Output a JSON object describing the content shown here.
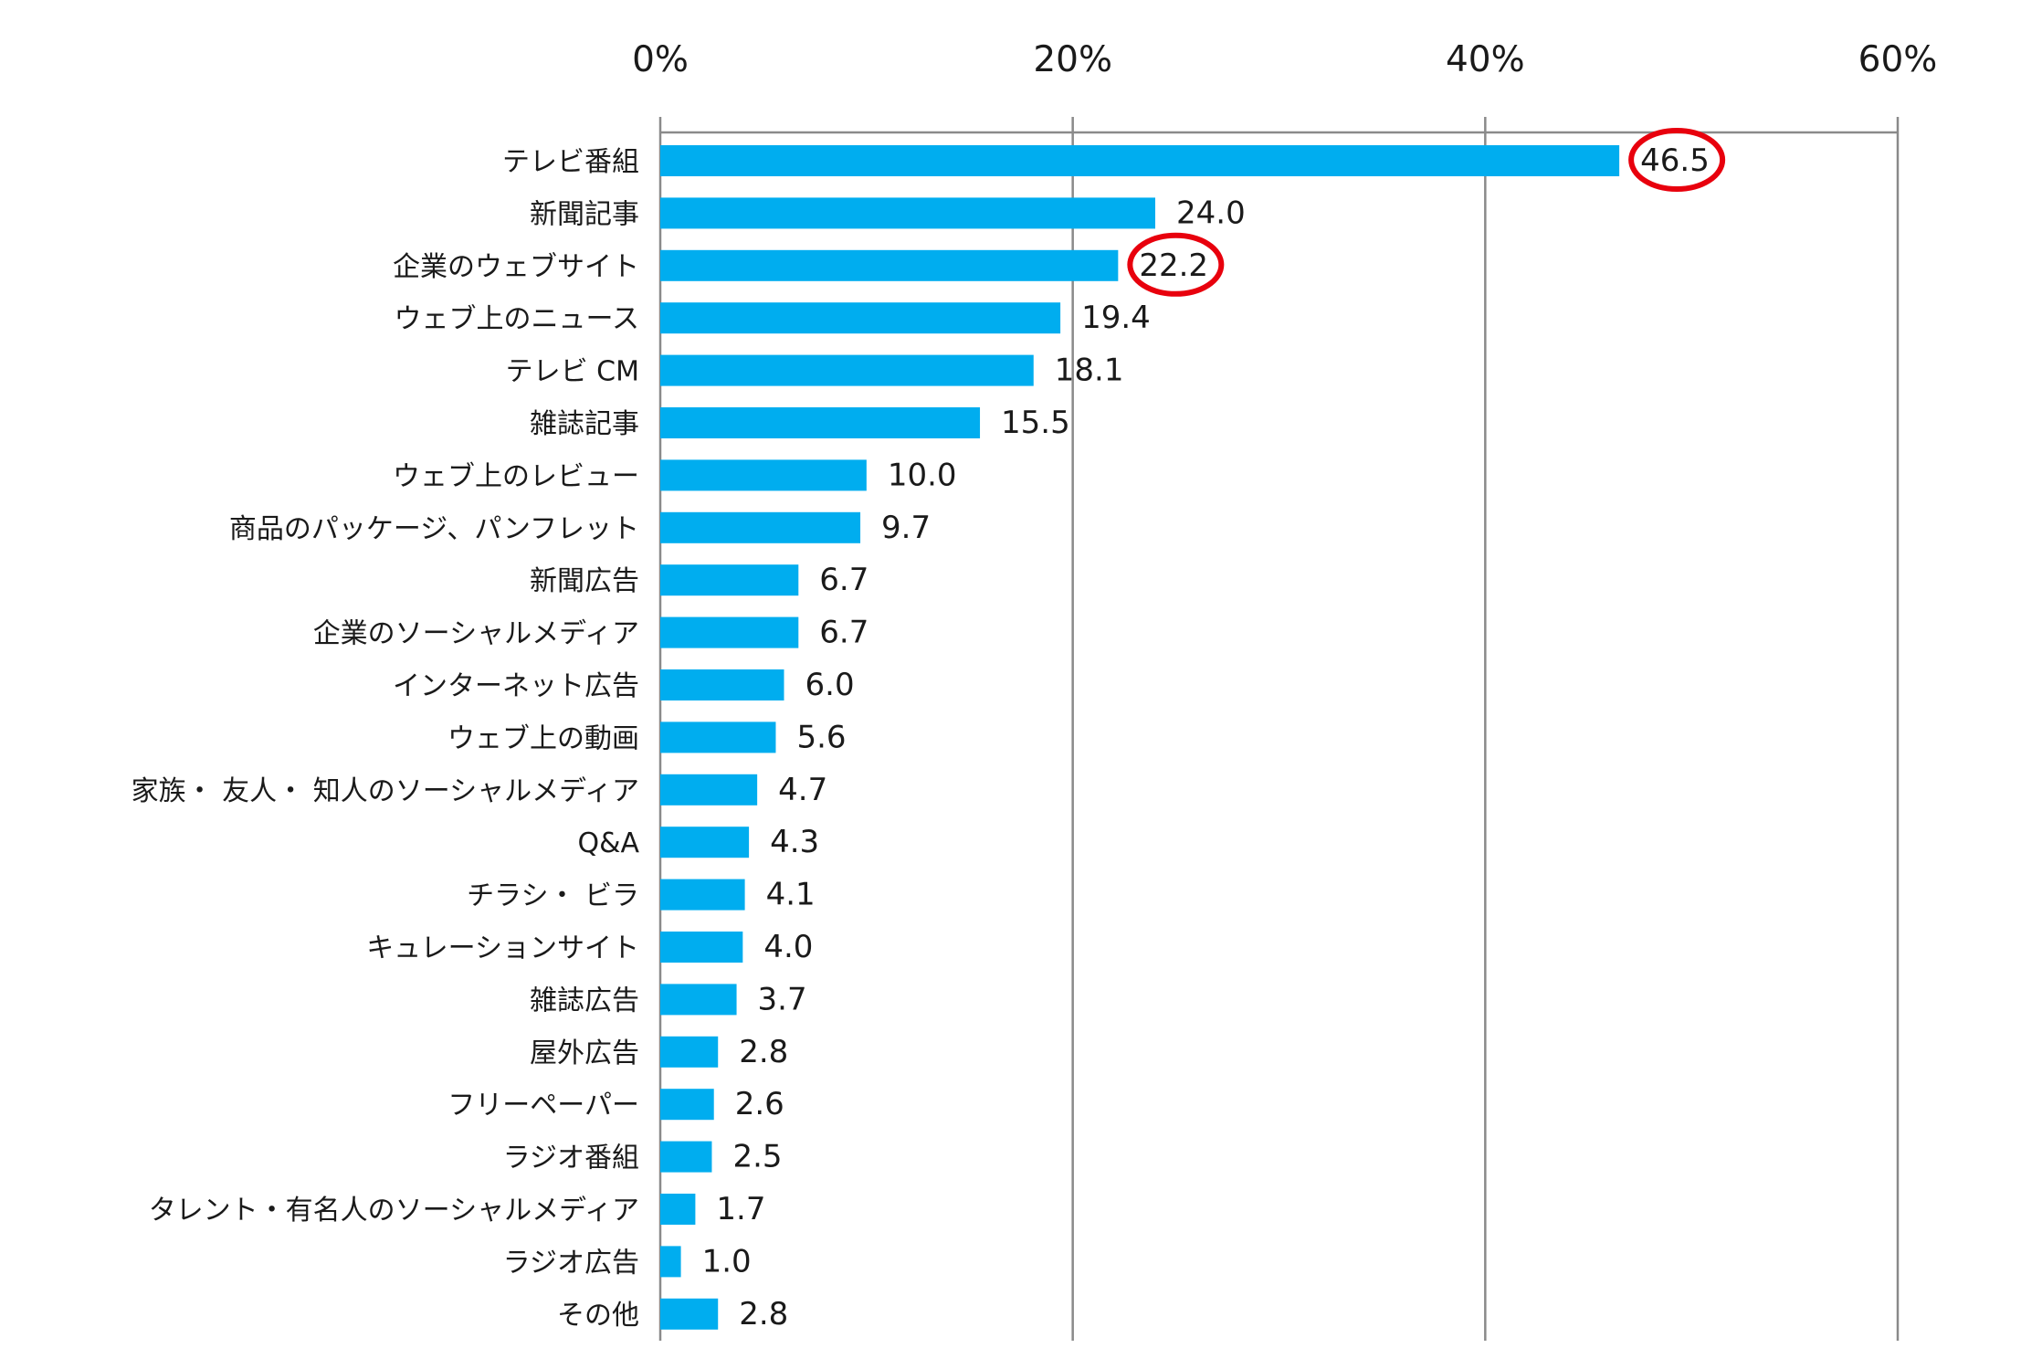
{
  "chart_data": {
    "type": "bar",
    "orientation": "horizontal",
    "title": "",
    "xlabel": "",
    "ylabel": "",
    "xlim": [
      0,
      60
    ],
    "x_ticks": [
      "0%",
      "20%",
      "40%",
      "60%"
    ],
    "x_tick_values": [
      0,
      20,
      40,
      60
    ],
    "grid": true,
    "bar_color": "#00adef",
    "highlight_color": "#e8000d",
    "highlighted_categories": [
      "テレビ番組",
      "企業のウェブサイト"
    ],
    "categories": [
      "テレビ番組",
      "新聞記事",
      "企業のウェブサイト",
      "ウェブ上のニュース",
      "テレビ CM",
      "雑誌記事",
      "ウェブ上のレビュー",
      "商品のパッケージ、パンフレット",
      "新聞広告",
      "企業のソーシャルメディア",
      "インターネット広告",
      "ウェブ上の動画",
      "家族・ 友人・ 知人のソーシャルメディア",
      "Q&A",
      "チラシ・ ビラ",
      "キュレーションサイト",
      "雑誌広告",
      "屋外広告",
      "フリーペーパー",
      "ラジオ番組",
      "タレント・有名人のソーシャルメディア",
      "ラジオ広告",
      "その他"
    ],
    "values": [
      46.5,
      24.0,
      22.2,
      19.4,
      18.1,
      15.5,
      10.0,
      9.7,
      6.7,
      6.7,
      6.0,
      5.6,
      4.7,
      4.3,
      4.1,
      4.0,
      3.7,
      2.8,
      2.6,
      2.5,
      1.7,
      1.0,
      2.8
    ],
    "value_labels": [
      "46.5",
      "24.0",
      "22.2",
      "19.4",
      "18.1",
      "15.5",
      "10.0",
      "9.7",
      "6.7",
      "6.7",
      "6.0",
      "5.6",
      "4.7",
      "4.3",
      "4.1",
      "4.0",
      "3.7",
      "2.8",
      "2.6",
      "2.5",
      "1.7",
      "1.0",
      "2.8"
    ]
  }
}
